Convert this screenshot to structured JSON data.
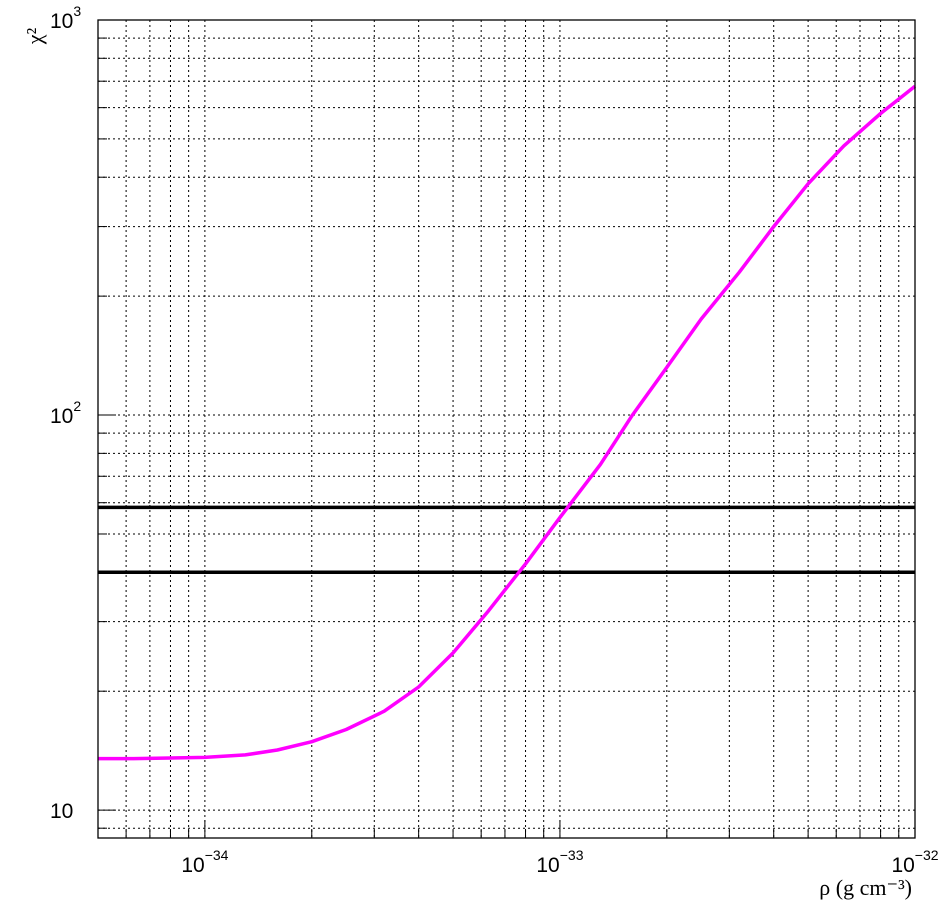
{
  "chart_data": {
    "type": "line",
    "xlabel": "ρ (g cm⁻³)",
    "ylabel": "χ²",
    "x_scale": "log",
    "y_scale": "log",
    "xlim": [
      5e-35,
      1e-32
    ],
    "ylim": [
      8.5,
      1000
    ],
    "grid": true,
    "x_ticks": [
      {
        "value": 1e-34,
        "base": "10",
        "exp": "−34"
      },
      {
        "value": 1e-33,
        "base": "10",
        "exp": "−33"
      },
      {
        "value": 1e-32,
        "base": "10",
        "exp": "−32"
      }
    ],
    "y_ticks": [
      {
        "value": 10,
        "base": "10",
        "exp": ""
      },
      {
        "value": 100,
        "base": "10",
        "exp": "2"
      },
      {
        "value": 1000,
        "base": "10",
        "exp": "3"
      }
    ],
    "series": [
      {
        "color": "#ff00ff",
        "x": [
          5e-35,
          6.3e-35,
          8e-35,
          1e-34,
          1.3e-34,
          1.6e-34,
          2e-34,
          2.5e-34,
          3.2e-34,
          4e-34,
          5e-34,
          6.3e-34,
          8e-34,
          1e-33,
          1.3e-33,
          1.6e-33,
          2e-33,
          2.5e-33,
          3.2e-33,
          4e-33,
          5e-33,
          6.3e-33,
          8e-33,
          1e-32
        ],
        "y": [
          13.5,
          13.5,
          13.55,
          13.6,
          13.8,
          14.2,
          14.9,
          16.0,
          17.8,
          20.5,
          25.0,
          32.0,
          42.0,
          55.0,
          75.0,
          100.0,
          132.0,
          175.0,
          230.0,
          300.0,
          385.0,
          480.0,
          580.0,
          680.0
        ]
      }
    ],
    "reference_lines": [
      {
        "y": 58.4,
        "color": "#000000"
      },
      {
        "y": 40.0,
        "color": "#000000"
      }
    ]
  }
}
